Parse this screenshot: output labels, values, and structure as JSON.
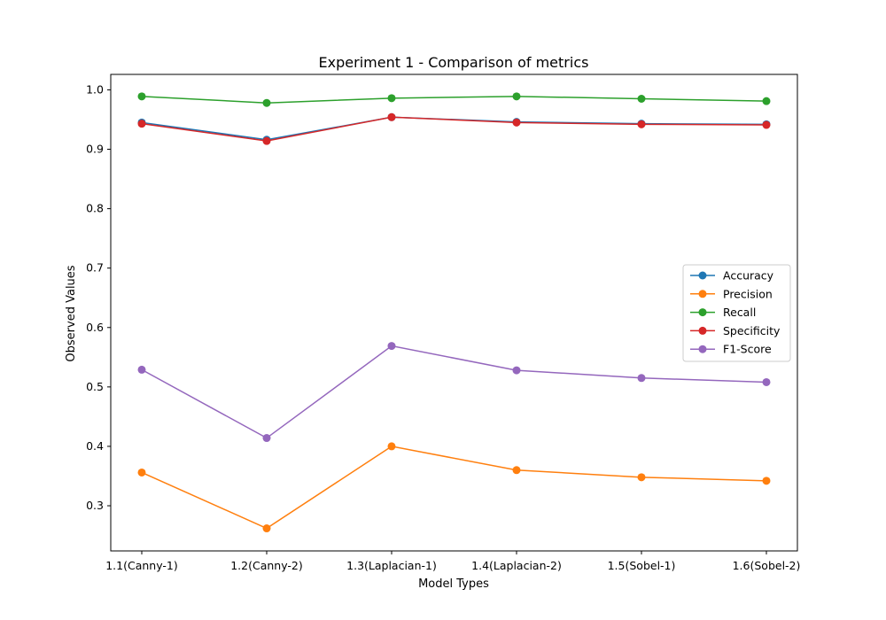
{
  "chart_data": {
    "type": "line",
    "title": "Experiment 1 - Comparison of metrics",
    "xlabel": "Model Types",
    "ylabel": "Observed Values",
    "categories": [
      "1.1(Canny-1)",
      "1.2(Canny-2)",
      "1.3(Laplacian-1)",
      "1.4(Laplacian-2)",
      "1.5(Sobel-1)",
      "1.6(Sobel-2)"
    ],
    "ylim": [
      0.224,
      1.026
    ],
    "yticks": [
      "0.3",
      "0.4",
      "0.5",
      "0.6",
      "0.7",
      "0.8",
      "0.9",
      "1.0"
    ],
    "legend_position": "center-right",
    "grid": false,
    "series": [
      {
        "name": "Accuracy",
        "color": "#1f77b4",
        "values": [
          0.945,
          0.916,
          0.954,
          0.946,
          0.943,
          0.942
        ]
      },
      {
        "name": "Precision",
        "color": "#ff7f0e",
        "values": [
          0.356,
          0.262,
          0.4,
          0.36,
          0.348,
          0.342
        ]
      },
      {
        "name": "Recall",
        "color": "#2ca02c",
        "values": [
          0.989,
          0.978,
          0.986,
          0.989,
          0.985,
          0.981
        ]
      },
      {
        "name": "Specificity",
        "color": "#d62728",
        "values": [
          0.943,
          0.914,
          0.954,
          0.945,
          0.942,
          0.941
        ]
      },
      {
        "name": "F1-Score",
        "color": "#9467bd",
        "values": [
          0.529,
          0.414,
          0.569,
          0.528,
          0.515,
          0.508
        ]
      }
    ]
  }
}
